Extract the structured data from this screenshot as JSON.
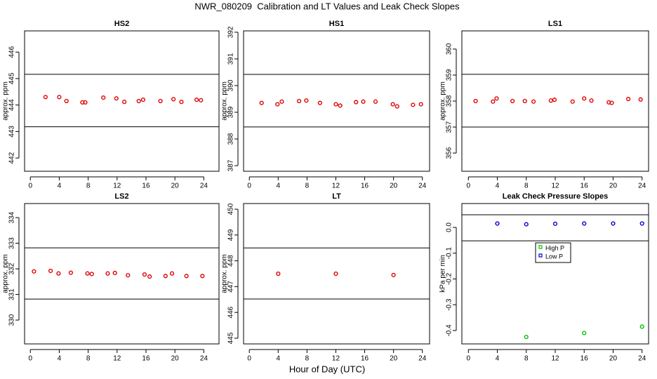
{
  "title": "NWR_080209  Calibration and LT Values and Leak Check Slopes",
  "xlabel": "Hour of Day (UTC)",
  "chart_data": [
    {
      "type": "scatter",
      "title": "HS2",
      "ylabel": "approx. ppm",
      "color": "#e00000",
      "x": [
        2.1,
        4.0,
        5.0,
        7.2,
        7.6,
        10.1,
        11.9,
        13.0,
        15.0,
        15.6,
        18.0,
        19.8,
        20.9,
        23.0,
        23.6
      ],
      "values": [
        444.3,
        444.3,
        444.15,
        444.1,
        444.1,
        444.28,
        444.25,
        444.12,
        444.15,
        444.2,
        444.15,
        444.22,
        444.12,
        444.2,
        444.18
      ],
      "hlines": [
        445.16,
        443.18
      ],
      "xlim": [
        -0.8,
        26.1
      ],
      "xticks": [
        0,
        4,
        8,
        12,
        16,
        20,
        24
      ],
      "ylim": [
        441.5,
        446.8
      ],
      "yticks": [
        442,
        443,
        444,
        445,
        446
      ]
    },
    {
      "type": "scatter",
      "title": "HS1",
      "ylabel": "approx. ppm",
      "color": "#e00000",
      "x": [
        1.7,
        3.9,
        4.5,
        6.9,
        7.9,
        9.8,
        12.0,
        12.6,
        14.8,
        15.8,
        17.5,
        19.9,
        20.5,
        22.7,
        23.8
      ],
      "values": [
        389.35,
        389.3,
        389.4,
        389.42,
        389.44,
        389.35,
        389.3,
        389.25,
        389.38,
        389.4,
        389.4,
        389.3,
        389.22,
        389.28,
        389.3
      ],
      "hlines": [
        390.42,
        388.45
      ],
      "xlim": [
        -0.8,
        25.0
      ],
      "xticks": [
        0,
        4,
        8,
        12,
        16,
        20,
        24
      ],
      "ylim": [
        386.79,
        392.05
      ],
      "yticks": [
        387,
        388,
        389,
        390,
        391,
        392
      ]
    },
    {
      "type": "scatter",
      "title": "LS1",
      "ylabel": "approx. ppm",
      "color": "#e00000",
      "x": [
        1.0,
        3.4,
        3.9,
        6.1,
        7.8,
        9.0,
        11.4,
        11.9,
        14.4,
        16.0,
        17.0,
        19.4,
        19.8,
        22.1,
        23.8
      ],
      "values": [
        358.0,
        357.98,
        358.1,
        358.0,
        358.0,
        357.98,
        358.02,
        358.05,
        357.98,
        358.1,
        358.02,
        357.95,
        357.93,
        358.08,
        358.06
      ],
      "hlines": [
        359.03,
        357.0
      ],
      "xlim": [
        -0.9,
        24.9
      ],
      "xticks": [
        0,
        4,
        8,
        12,
        16,
        20,
        24
      ],
      "ylim": [
        355.3,
        360.7
      ],
      "yticks": [
        356,
        357,
        358,
        359,
        360
      ]
    },
    {
      "type": "scatter",
      "title": "LS2",
      "ylabel": "approx. ppm",
      "color": "#e00000",
      "x": [
        0.5,
        2.8,
        3.9,
        5.6,
        7.9,
        8.5,
        10.7,
        11.7,
        13.5,
        15.8,
        16.5,
        18.7,
        19.6,
        21.6,
        23.8
      ],
      "values": [
        331.9,
        331.92,
        331.82,
        331.85,
        331.82,
        331.8,
        331.82,
        331.84,
        331.75,
        331.78,
        331.7,
        331.72,
        331.82,
        331.72,
        331.72
      ],
      "hlines": [
        332.82,
        330.82
      ],
      "xlim": [
        -0.8,
        26.1
      ],
      "xticks": [
        0,
        4,
        8,
        12,
        16,
        20,
        24
      ],
      "ylim": [
        329.07,
        334.55
      ],
      "yticks": [
        330,
        331,
        332,
        333,
        334
      ]
    },
    {
      "type": "scatter",
      "title": "LT",
      "ylabel": "approx. ppm",
      "color": "#e00000",
      "x": [
        4,
        12,
        20
      ],
      "values": [
        447.5,
        447.5,
        447.45
      ],
      "hlines": [
        448.5,
        446.52
      ],
      "xlim": [
        -0.8,
        25.0
      ],
      "xticks": [
        0,
        4,
        8,
        12,
        16,
        20,
        24
      ],
      "ylim": [
        444.78,
        450.22
      ],
      "yticks": [
        445,
        446,
        447,
        448,
        449,
        450
      ]
    },
    {
      "type": "scatter",
      "title": "Leak Check Pressure Slopes",
      "ylabel": "kPa per min",
      "legend": "center",
      "series": [
        {
          "name": "High P",
          "color": "#00c000",
          "x": [
            8,
            16,
            24
          ],
          "values": [
            -0.425,
            -0.41,
            -0.385
          ]
        },
        {
          "name": "Low P",
          "color": "#0000cc",
          "x": [
            4,
            8,
            12,
            16,
            20,
            24
          ],
          "values": [
            0.015,
            0.012,
            0.014,
            0.015,
            0.015,
            0.015
          ]
        }
      ],
      "hlines": [
        0.049,
        -0.052
      ],
      "xlim": [
        -0.9,
        24.9
      ],
      "xticks": [
        0,
        4,
        8,
        12,
        16,
        20,
        24
      ],
      "ylim": [
        -0.452,
        0.0925
      ],
      "yticks": [
        {
          "value": 0,
          "label": "0.0"
        },
        -0.1,
        -0.2,
        -0.3,
        -0.4
      ]
    }
  ]
}
